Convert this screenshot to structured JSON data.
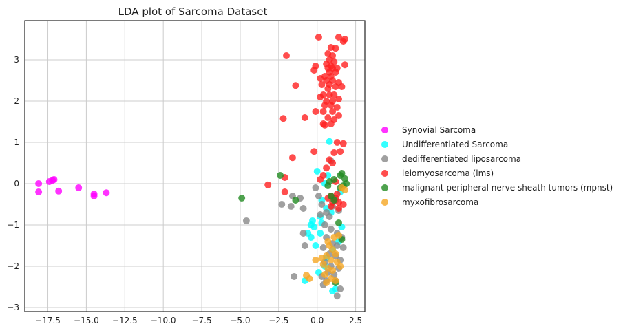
{
  "chart_data": {
    "type": "scatter",
    "title": "LDA plot of Sarcoma Dataset",
    "xlabel": "",
    "ylabel": "",
    "xlim": [
      -19,
      3.1
    ],
    "ylim": [
      -3.1,
      3.95
    ],
    "xticks": [
      -17.5,
      -15.0,
      -12.5,
      -10.0,
      -7.5,
      -5.0,
      -2.5,
      0.0,
      2.5
    ],
    "xtick_labels": [
      "−17.5",
      "−15.0",
      "−12.5",
      "−10.0",
      "−7.5",
      "−5.0",
      "−2.5",
      "0.0",
      "2.5"
    ],
    "yticks": [
      -3,
      -2,
      -1,
      0,
      1,
      2,
      3
    ],
    "ytick_labels": [
      "−3",
      "−2",
      "−1",
      "0",
      "1",
      "2",
      "3"
    ],
    "grid": true,
    "legend_position": "right",
    "series": [
      {
        "name": "Synovial Sarcoma",
        "color": "#ff00ff",
        "points": [
          [
            -18.1,
            0.0
          ],
          [
            -18.1,
            -0.2
          ],
          [
            -17.4,
            0.05
          ],
          [
            -17.2,
            0.08
          ],
          [
            -17.1,
            0.1
          ],
          [
            -16.8,
            -0.18
          ],
          [
            -15.5,
            -0.1
          ],
          [
            -14.5,
            -0.25
          ],
          [
            -14.5,
            -0.3
          ],
          [
            -13.7,
            -0.22
          ]
        ]
      },
      {
        "name": "Undifferentiated Sarcoma",
        "color": "#00ffff",
        "points": [
          [
            0.0,
            0.3
          ],
          [
            0.5,
            0.0
          ],
          [
            0.8,
            1.02
          ],
          [
            0.3,
            -0.4
          ],
          [
            0.6,
            -0.6
          ],
          [
            1.5,
            -0.2
          ],
          [
            0.2,
            -0.8
          ],
          [
            -0.3,
            -0.9
          ],
          [
            -0.6,
            -1.2
          ],
          [
            -0.4,
            -1.3
          ],
          [
            -0.1,
            -1.5
          ],
          [
            0.2,
            -1.2
          ],
          [
            -0.4,
            -1.0
          ],
          [
            1.0,
            -1.6
          ],
          [
            0.5,
            -2.0
          ],
          [
            -0.8,
            -2.35
          ],
          [
            0.1,
            -2.15
          ],
          [
            1.0,
            -2.6
          ],
          [
            1.2,
            -2.55
          ],
          [
            0.6,
            -1.8
          ],
          [
            1.4,
            -1.4
          ],
          [
            0.3,
            -0.95
          ],
          [
            1.6,
            -1.05
          ],
          [
            1.1,
            -0.35
          ],
          [
            0.9,
            -0.7
          ],
          [
            0.7,
            0.2
          ],
          [
            -0.2,
            -1.05
          ]
        ]
      },
      {
        "name": "dedifferentiated liposarcoma",
        "color": "#888888",
        "points": [
          [
            -4.6,
            -0.9
          ],
          [
            -2.3,
            -0.5
          ],
          [
            -1.7,
            -0.55
          ],
          [
            -1.1,
            -0.35
          ],
          [
            -0.9,
            -0.6
          ],
          [
            -0.1,
            -0.1
          ],
          [
            0.1,
            -0.3
          ],
          [
            0.3,
            -0.5
          ],
          [
            0.6,
            -0.7
          ],
          [
            0.8,
            -0.8
          ],
          [
            1.0,
            -0.55
          ],
          [
            1.2,
            -0.4
          ],
          [
            1.4,
            -0.65
          ],
          [
            0.5,
            -1.0
          ],
          [
            0.9,
            -1.1
          ],
          [
            1.3,
            -1.2
          ],
          [
            1.6,
            -1.3
          ],
          [
            0.6,
            -1.3
          ],
          [
            1.0,
            -1.45
          ],
          [
            1.3,
            -1.5
          ],
          [
            1.7,
            -1.55
          ],
          [
            0.4,
            -1.55
          ],
          [
            0.8,
            -1.7
          ],
          [
            1.2,
            -1.75
          ],
          [
            1.5,
            -1.85
          ],
          [
            0.5,
            -1.9
          ],
          [
            0.9,
            -2.0
          ],
          [
            1.4,
            -2.05
          ],
          [
            0.7,
            -2.15
          ],
          [
            1.1,
            -2.2
          ],
          [
            0.3,
            -2.25
          ],
          [
            0.6,
            -2.35
          ],
          [
            1.2,
            -2.35
          ],
          [
            0.4,
            -2.45
          ],
          [
            1.5,
            -2.55
          ],
          [
            1.3,
            -2.72
          ],
          [
            -0.8,
            -1.5
          ],
          [
            -0.9,
            -1.2
          ],
          [
            -1.5,
            -2.25
          ],
          [
            0.9,
            0.55
          ],
          [
            -1.6,
            -0.3
          ],
          [
            0.2,
            -0.75
          ]
        ]
      },
      {
        "name": "leiomyosarcoma (lms)",
        "color": "#ff2020",
        "points": [
          [
            0.1,
            3.55
          ],
          [
            1.4,
            3.55
          ],
          [
            1.8,
            3.5
          ],
          [
            1.7,
            3.45
          ],
          [
            0.9,
            3.3
          ],
          [
            1.2,
            3.28
          ],
          [
            0.7,
            3.15
          ],
          [
            1.0,
            3.1
          ],
          [
            -2.0,
            3.1
          ],
          [
            0.8,
            3.0
          ],
          [
            1.1,
            2.95
          ],
          [
            0.6,
            2.9
          ],
          [
            0.9,
            2.85
          ],
          [
            -0.1,
            2.85
          ],
          [
            0.7,
            2.8
          ],
          [
            1.0,
            2.8
          ],
          [
            1.3,
            2.8
          ],
          [
            1.8,
            2.88
          ],
          [
            -0.2,
            2.75
          ],
          [
            0.8,
            2.7
          ],
          [
            1.2,
            2.7
          ],
          [
            0.5,
            2.6
          ],
          [
            0.9,
            2.6
          ],
          [
            0.2,
            2.55
          ],
          [
            0.6,
            2.5
          ],
          [
            1.0,
            2.5
          ],
          [
            1.4,
            2.45
          ],
          [
            0.3,
            2.4
          ],
          [
            0.8,
            2.4
          ],
          [
            1.2,
            2.35
          ],
          [
            0.7,
            2.3
          ],
          [
            1.6,
            2.35
          ],
          [
            -1.4,
            2.38
          ],
          [
            0.4,
            2.15
          ],
          [
            0.8,
            2.15
          ],
          [
            1.1,
            2.15
          ],
          [
            0.2,
            2.1
          ],
          [
            1.4,
            2.05
          ],
          [
            0.6,
            2.0
          ],
          [
            1.0,
            2.0
          ],
          [
            0.5,
            1.9
          ],
          [
            0.9,
            1.9
          ],
          [
            1.3,
            1.85
          ],
          [
            0.4,
            1.75
          ],
          [
            1.0,
            1.75
          ],
          [
            -0.1,
            1.75
          ],
          [
            1.4,
            1.65
          ],
          [
            0.7,
            1.6
          ],
          [
            -0.8,
            1.6
          ],
          [
            -2.2,
            1.58
          ],
          [
            1.1,
            1.55
          ],
          [
            0.9,
            1.45
          ],
          [
            0.5,
            1.42
          ],
          [
            0.4,
            1.45
          ],
          [
            1.3,
            1.0
          ],
          [
            1.7,
            0.97
          ],
          [
            1.1,
            0.75
          ],
          [
            1.5,
            0.78
          ],
          [
            -0.2,
            0.78
          ],
          [
            0.8,
            0.58
          ],
          [
            -1.6,
            0.63
          ],
          [
            1.0,
            0.5
          ],
          [
            0.6,
            0.38
          ],
          [
            0.4,
            0.2
          ],
          [
            0.2,
            0.1
          ],
          [
            1.2,
            0.05
          ],
          [
            -2.1,
            0.15
          ],
          [
            -3.2,
            -0.03
          ],
          [
            -2.1,
            -0.2
          ],
          [
            1.3,
            -0.25
          ],
          [
            0.7,
            -0.35
          ],
          [
            1.0,
            -0.45
          ],
          [
            0.9,
            -0.55
          ],
          [
            1.4,
            -0.6
          ],
          [
            1.2,
            -0.35
          ],
          [
            1.7,
            -0.5
          ],
          [
            1.4,
            -0.45
          ],
          [
            0.9,
            -0.3
          ]
        ]
      },
      {
        "name": "malignant peripheral nerve sheath tumors (mpnst)",
        "color": "#228b22",
        "points": [
          [
            -4.9,
            -0.35
          ],
          [
            -2.4,
            0.2
          ],
          [
            -1.4,
            -0.4
          ],
          [
            1.1,
            0.1
          ],
          [
            1.5,
            0.2
          ],
          [
            1.6,
            0.25
          ],
          [
            1.8,
            0.12
          ],
          [
            1.9,
            0.0
          ],
          [
            0.8,
            0.05
          ],
          [
            0.7,
            -0.05
          ],
          [
            1.7,
            -0.05
          ],
          [
            1.5,
            -0.1
          ],
          [
            0.9,
            -0.3
          ],
          [
            1.1,
            -0.4
          ],
          [
            1.4,
            -0.95
          ],
          [
            1.6,
            -1.35
          ],
          [
            1.2,
            -2.4
          ]
        ]
      },
      {
        "name": "myxofibrosarcoma",
        "color": "#f5a623",
        "points": [
          [
            -0.7,
            -2.22
          ],
          [
            -0.5,
            -2.3
          ],
          [
            0.8,
            -1.5
          ],
          [
            1.0,
            -1.6
          ],
          [
            1.2,
            -1.7
          ],
          [
            0.6,
            -1.75
          ],
          [
            0.9,
            -1.85
          ],
          [
            1.3,
            -1.9
          ],
          [
            0.4,
            -1.95
          ],
          [
            0.7,
            -2.05
          ],
          [
            1.0,
            -2.1
          ],
          [
            1.5,
            -2.0
          ],
          [
            0.5,
            -2.2
          ],
          [
            0.9,
            -2.3
          ],
          [
            1.2,
            -2.35
          ],
          [
            -0.1,
            -1.85
          ],
          [
            0.3,
            -1.8
          ],
          [
            0.7,
            -1.4
          ],
          [
            1.1,
            -1.3
          ],
          [
            1.6,
            -0.1
          ],
          [
            1.8,
            -0.15
          ],
          [
            0.6,
            -2.4
          ],
          [
            1.4,
            -1.25
          ]
        ]
      }
    ]
  }
}
